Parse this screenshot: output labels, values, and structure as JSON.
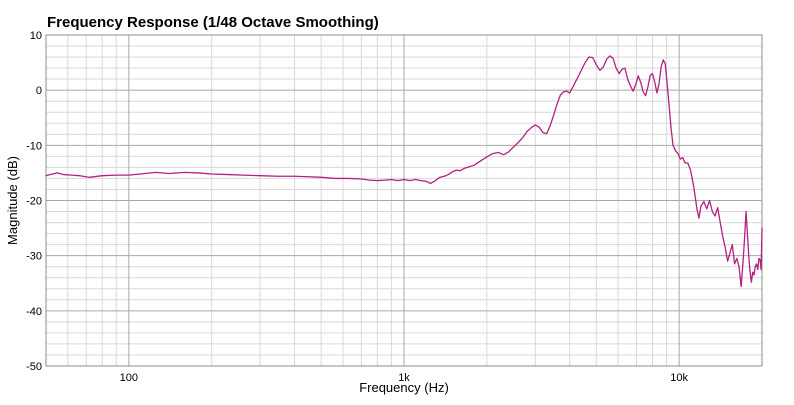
{
  "chart_data": {
    "type": "line",
    "title": "Frequency Response (1/48 Octave Smoothing)",
    "xlabel": "Frequency (Hz)",
    "ylabel": "Magnitude (dB)",
    "x_scale": "log",
    "xlim": [
      50,
      20000
    ],
    "ylim": [
      -50,
      10
    ],
    "x_ticks": [
      {
        "value": 100,
        "label": "100"
      },
      {
        "value": 1000,
        "label": "1k"
      },
      {
        "value": 10000,
        "label": "10k"
      }
    ],
    "y_ticks": [
      10,
      0,
      -10,
      -20,
      -30,
      -40,
      -50
    ],
    "grid": true,
    "legend": false,
    "line_color": "#b3207f",
    "grid_color": "#d9d9d9",
    "major_grid_color": "#a8a8a8",
    "series": [
      {
        "name": "",
        "points": [
          [
            50,
            -15.5
          ],
          [
            55,
            -15.0
          ],
          [
            58,
            -15.3
          ],
          [
            62,
            -15.4
          ],
          [
            66,
            -15.5
          ],
          [
            72,
            -15.8
          ],
          [
            80,
            -15.5
          ],
          [
            90,
            -15.4
          ],
          [
            100,
            -15.4
          ],
          [
            110,
            -15.2
          ],
          [
            125,
            -14.9
          ],
          [
            140,
            -15.1
          ],
          [
            160,
            -14.9
          ],
          [
            180,
            -15.0
          ],
          [
            200,
            -15.2
          ],
          [
            230,
            -15.3
          ],
          [
            260,
            -15.4
          ],
          [
            300,
            -15.5
          ],
          [
            350,
            -15.6
          ],
          [
            400,
            -15.6
          ],
          [
            450,
            -15.7
          ],
          [
            500,
            -15.8
          ],
          [
            560,
            -16.0
          ],
          [
            630,
            -16.0
          ],
          [
            700,
            -16.1
          ],
          [
            750,
            -16.3
          ],
          [
            800,
            -16.4
          ],
          [
            850,
            -16.3
          ],
          [
            900,
            -16.2
          ],
          [
            950,
            -16.4
          ],
          [
            1000,
            -16.2
          ],
          [
            1050,
            -16.4
          ],
          [
            1100,
            -16.2
          ],
          [
            1150,
            -16.4
          ],
          [
            1200,
            -16.5
          ],
          [
            1250,
            -16.9
          ],
          [
            1300,
            -16.4
          ],
          [
            1350,
            -15.8
          ],
          [
            1400,
            -15.6
          ],
          [
            1450,
            -15.3
          ],
          [
            1500,
            -14.8
          ],
          [
            1550,
            -14.5
          ],
          [
            1600,
            -14.6
          ],
          [
            1650,
            -14.2
          ],
          [
            1700,
            -14.0
          ],
          [
            1800,
            -13.6
          ],
          [
            1900,
            -12.8
          ],
          [
            2000,
            -12.1
          ],
          [
            2100,
            -11.5
          ],
          [
            2200,
            -11.3
          ],
          [
            2300,
            -11.7
          ],
          [
            2400,
            -11.2
          ],
          [
            2500,
            -10.3
          ],
          [
            2600,
            -9.5
          ],
          [
            2700,
            -8.6
          ],
          [
            2800,
            -7.5
          ],
          [
            2900,
            -6.8
          ],
          [
            3000,
            -6.3
          ],
          [
            3100,
            -6.7
          ],
          [
            3200,
            -7.7
          ],
          [
            3300,
            -7.9
          ],
          [
            3400,
            -6.4
          ],
          [
            3500,
            -4.5
          ],
          [
            3600,
            -2.5
          ],
          [
            3700,
            -0.9
          ],
          [
            3800,
            -0.3
          ],
          [
            3900,
            -0.2
          ],
          [
            4000,
            -0.5
          ],
          [
            4100,
            0.5
          ],
          [
            4250,
            2.0
          ],
          [
            4400,
            3.5
          ],
          [
            4550,
            5.0
          ],
          [
            4700,
            6.0
          ],
          [
            4850,
            5.9
          ],
          [
            5000,
            4.6
          ],
          [
            5150,
            3.6
          ],
          [
            5300,
            4.2
          ],
          [
            5450,
            5.6
          ],
          [
            5600,
            6.2
          ],
          [
            5750,
            5.8
          ],
          [
            5900,
            4.0
          ],
          [
            6050,
            3.0
          ],
          [
            6200,
            3.8
          ],
          [
            6350,
            4.0
          ],
          [
            6500,
            2.0
          ],
          [
            6650,
            0.8
          ],
          [
            6800,
            -0.2
          ],
          [
            6950,
            1.0
          ],
          [
            7100,
            2.6
          ],
          [
            7250,
            1.4
          ],
          [
            7400,
            -0.3
          ],
          [
            7550,
            -1.0
          ],
          [
            7700,
            0.6
          ],
          [
            7850,
            2.7
          ],
          [
            8000,
            3.0
          ],
          [
            8150,
            1.5
          ],
          [
            8300,
            -0.5
          ],
          [
            8450,
            1.2
          ],
          [
            8600,
            4.2
          ],
          [
            8750,
            5.5
          ],
          [
            8900,
            4.8
          ],
          [
            9050,
            1.0
          ],
          [
            9200,
            -3.0
          ],
          [
            9350,
            -7.0
          ],
          [
            9500,
            -10.0
          ],
          [
            9700,
            -11.0
          ],
          [
            9900,
            -11.5
          ],
          [
            10100,
            -12.5
          ],
          [
            10300,
            -12.2
          ],
          [
            10500,
            -13.2
          ],
          [
            10750,
            -13.2
          ],
          [
            11000,
            -14.5
          ],
          [
            11300,
            -17.5
          ],
          [
            11600,
            -21.5
          ],
          [
            11800,
            -23.2
          ],
          [
            12000,
            -21.0
          ],
          [
            12300,
            -20.2
          ],
          [
            12600,
            -21.5
          ],
          [
            12900,
            -20.0
          ],
          [
            13200,
            -22.0
          ],
          [
            13500,
            -22.8
          ],
          [
            13800,
            -21.3
          ],
          [
            14100,
            -24.0
          ],
          [
            14400,
            -26.5
          ],
          [
            14700,
            -28.5
          ],
          [
            15000,
            -31.0
          ],
          [
            15300,
            -29.5
          ],
          [
            15600,
            -28.0
          ],
          [
            15900,
            -31.5
          ],
          [
            16200,
            -30.5
          ],
          [
            16500,
            -32.0
          ],
          [
            16800,
            -35.6
          ],
          [
            17100,
            -30.5
          ],
          [
            17300,
            -26.5
          ],
          [
            17500,
            -22.0
          ],
          [
            17700,
            -26.0
          ],
          [
            17900,
            -30.0
          ],
          [
            18100,
            -33.0
          ],
          [
            18300,
            -34.8
          ],
          [
            18500,
            -33.0
          ],
          [
            18700,
            -33.5
          ],
          [
            18900,
            -32.0
          ],
          [
            19100,
            -31.5
          ],
          [
            19300,
            -32.5
          ],
          [
            19500,
            -30.5
          ],
          [
            19700,
            -30.8
          ],
          [
            19850,
            -32.5
          ],
          [
            20000,
            -25.0
          ]
        ]
      }
    ]
  }
}
